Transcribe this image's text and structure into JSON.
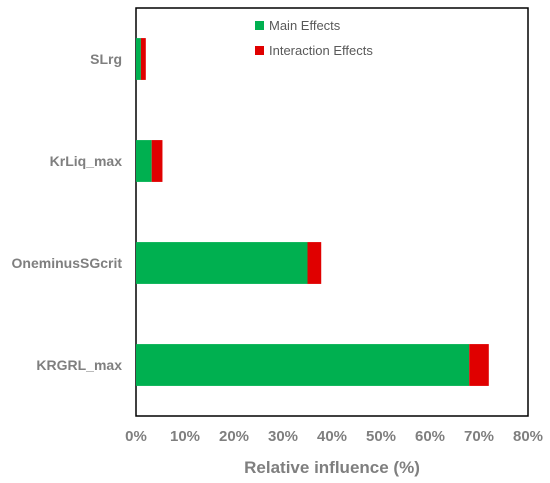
{
  "chart_data": {
    "type": "bar",
    "orientation": "horizontal",
    "stacked": true,
    "categories": [
      "SLrg",
      "KrLiq_max",
      "OneminusSGcrit",
      "KRGRL_max"
    ],
    "series": [
      {
        "name": "Main Effects",
        "color": "#00b050",
        "values": [
          1.0,
          3.2,
          35.0,
          68.0
        ]
      },
      {
        "name": "Interaction Effects",
        "color": "#e00000",
        "values": [
          1.0,
          2.2,
          2.8,
          4.0
        ]
      }
    ],
    "xlabel": "Relative influence (%)",
    "ylabel": "",
    "xlim": [
      0,
      80
    ],
    "xticks": [
      "0%",
      "10%",
      "20%",
      "30%",
      "40%",
      "50%",
      "60%",
      "70%",
      "80%"
    ],
    "grid": false,
    "legend_position": "top-center"
  }
}
